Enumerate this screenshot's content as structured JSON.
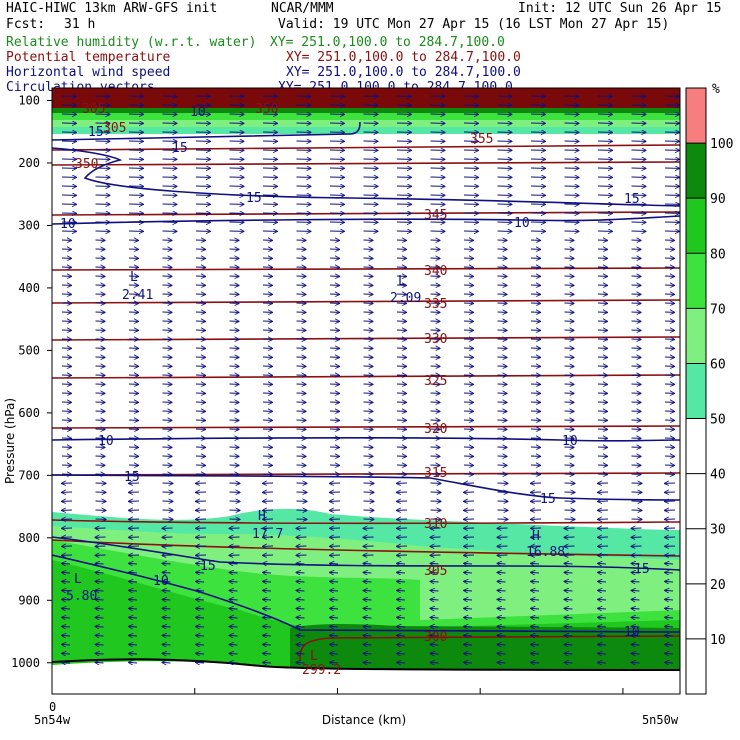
{
  "header": {
    "model": "HAIC-HIWC 13km ARW-GFS init",
    "center": "NCAR/MMM",
    "init": "Init: 12 UTC Sun 26 Apr 15",
    "fcst_label": "Fcst:",
    "fcst_value": "31 h",
    "valid": "Valid: 19 UTC Mon 27 Apr 15 (16 LST Mon 27 Apr 15)"
  },
  "fields": [
    {
      "name": "Relative humidity (w.r.t. water)",
      "xy": "XY= 251.0,100.0 to 284.7,100.0",
      "color": "#1a8c1a"
    },
    {
      "name": "Potential temperature",
      "xy": "XY= 251.0,100.0 to 284.7,100.0",
      "color": "#8b1010"
    },
    {
      "name": "Horizontal wind speed",
      "xy": "XY= 251.0,100.0 to 284.7,100.0",
      "color": "#101080"
    },
    {
      "name": "Circulation vectors",
      "xy": "XY= 251.0,100.0 to 284.7,100.0",
      "color": "#101080"
    }
  ],
  "chart_data": {
    "type": "cross-section",
    "ylabel": "Pressure (hPa)",
    "xlabel": "Distance (km)",
    "x_origin_label": "0",
    "x_left_label": "5n54w",
    "x_right_label": "5n50w",
    "y_ticks": [
      100,
      200,
      300,
      400,
      500,
      600,
      700,
      800,
      900,
      1000
    ],
    "ylim": [
      1050,
      80
    ],
    "colorbar": {
      "unit": "%",
      "ticks": [
        10,
        20,
        30,
        40,
        50,
        60,
        70,
        80,
        90,
        100
      ],
      "bands": [
        {
          "from": 0,
          "to": 50,
          "color": "#ffffff"
        },
        {
          "from": 50,
          "to": 60,
          "color": "#55e8a5"
        },
        {
          "from": 60,
          "to": 70,
          "color": "#7ff07f"
        },
        {
          "from": 70,
          "to": 80,
          "color": "#3ee23e"
        },
        {
          "from": 80,
          "to": 90,
          "color": "#1fc71f"
        },
        {
          "from": 90,
          "to": 100,
          "color": "#0d8a0d"
        },
        {
          "from": 100,
          "to": 110,
          "color": "#f77e7e"
        }
      ]
    },
    "theta_labels": [
      "305",
      "350",
      "355",
      "345",
      "340",
      "335",
      "330",
      "325",
      "320",
      "315",
      "310",
      "305",
      "300"
    ],
    "wind_labels": [
      "10",
      "15",
      "15",
      "15",
      "10",
      "10",
      "10",
      "10",
      "15",
      "15",
      "15",
      "15",
      "10",
      "15",
      "10"
    ],
    "extrema": [
      {
        "type": "L",
        "value": "2.41"
      },
      {
        "type": "L",
        "value": "2.09"
      },
      {
        "type": "H",
        "value": "17.7"
      },
      {
        "type": "H",
        "value": "16.88"
      },
      {
        "type": "L",
        "value": "5.80"
      },
      {
        "type": "L",
        "value": "299.2"
      }
    ],
    "top_labels": [
      "305",
      "350"
    ]
  }
}
